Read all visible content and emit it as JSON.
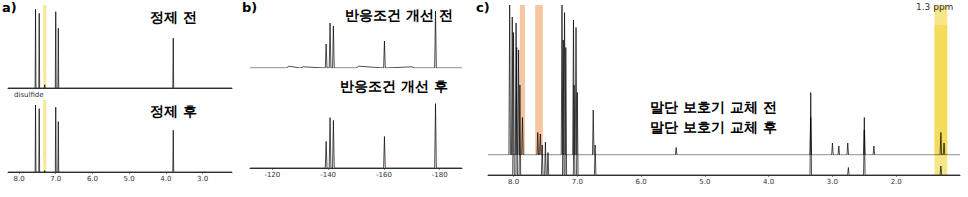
{
  "chart_data": [
    {
      "type": "line",
      "title": "a)",
      "tick_labels": "x",
      "grid": false,
      "xlim": [
        8.3,
        2.2
      ],
      "xticks": [
        {
          "value": 8,
          "label": "8.0"
        },
        {
          "value": 7,
          "label": "7.0"
        },
        {
          "value": 6,
          "label": "6.0"
        },
        {
          "value": 5,
          "label": "5.0"
        },
        {
          "value": 4,
          "label": "4.0"
        },
        {
          "value": 3,
          "label": "3.0"
        }
      ],
      "ylim": [
        0,
        100
      ],
      "annotations": [
        "disulfide"
      ],
      "highlights": [
        {
          "range": [
            7.34,
            7.26
          ],
          "color": "#f2dc3c",
          "series": [
            0,
            1
          ]
        }
      ],
      "series": [
        {
          "name": "정제 전",
          "color": "#000000",
          "x": [
            8.3,
            7.562,
            7.55,
            7.538,
            7.462,
            7.45,
            7.438,
            7.312,
            7.3,
            7.288,
            7.012,
            7.0,
            6.988,
            6.942,
            6.93,
            6.918,
            3.812,
            3.8,
            3.788,
            2.2
          ],
          "values": [
            0,
            0,
            95,
            0,
            0,
            90,
            0,
            0,
            4,
            0,
            0,
            92,
            0,
            0,
            72,
            0,
            0,
            60,
            0,
            0
          ]
        },
        {
          "name": "정제 후",
          "color": "#000000",
          "x": [
            8.3,
            7.562,
            7.55,
            7.538,
            7.462,
            7.45,
            7.438,
            7.312,
            7.3,
            7.288,
            7.012,
            7.0,
            6.988,
            6.942,
            6.93,
            6.918,
            3.812,
            3.8,
            3.788,
            2.2
          ],
          "values": [
            0,
            0,
            93,
            0,
            0,
            88,
            0,
            0,
            2,
            0,
            0,
            90,
            0,
            0,
            70,
            0,
            0,
            58,
            0,
            0
          ]
        }
      ]
    },
    {
      "type": "line",
      "title": "b)",
      "tick_labels": "x",
      "grid": false,
      "xlim": [
        -112,
        -188
      ],
      "xticks": [
        -120,
        -140,
        -160,
        -180
      ],
      "ylim": [
        0,
        100
      ],
      "series": [
        {
          "name": "반응조건 개선 전",
          "color": "#000000",
          "x": [
            -112,
            -125,
            -126,
            -130,
            -131,
            -139.0,
            -139.3,
            -139.6,
            -140.4,
            -140.7,
            -141.0,
            -141.6,
            -141.9,
            -142.2,
            -150,
            -151,
            -159.9,
            -160.2,
            -160.5,
            -170,
            -171,
            -178.2,
            -178.5,
            -178.8,
            -188
          ],
          "values": [
            0,
            0,
            3,
            0,
            2,
            0,
            40,
            0,
            0,
            75,
            0,
            0,
            70,
            0,
            0,
            3,
            0,
            45,
            0,
            2,
            0,
            0,
            95,
            0,
            0
          ]
        },
        {
          "name": "반응조건 개선 후",
          "color": "#000000",
          "x": [
            -112,
            -139.0,
            -139.3,
            -139.6,
            -140.4,
            -140.7,
            -141.0,
            -141.6,
            -141.9,
            -142.2,
            -159.9,
            -160.2,
            -160.5,
            -178.2,
            -178.5,
            -178.8,
            -188
          ],
          "values": [
            0,
            0,
            38,
            0,
            0,
            72,
            0,
            0,
            68,
            0,
            0,
            45,
            0,
            0,
            92,
            0,
            0
          ]
        }
      ]
    },
    {
      "type": "line",
      "title": "c)",
      "tick_labels": "x",
      "grid": false,
      "xlim": [
        8.4,
        1.0
      ],
      "xticks": [
        {
          "value": 8,
          "label": "8.0"
        },
        {
          "value": 7,
          "label": "7.0"
        },
        {
          "value": 6,
          "label": "6.0"
        },
        {
          "value": 5,
          "label": "5.0"
        },
        {
          "value": 4,
          "label": "4.0"
        },
        {
          "value": 3,
          "label": "3.0"
        },
        {
          "value": 2,
          "label": "2.0"
        }
      ],
      "ylim": [
        0,
        100
      ],
      "annotations": [
        "1.3 ppm"
      ],
      "highlights": [
        {
          "range": [
            7.9,
            7.82
          ],
          "color": "#f0a060",
          "series": [
            0
          ]
        },
        {
          "range": [
            7.66,
            7.54
          ],
          "color": "#f0a060",
          "series": [
            0
          ]
        },
        {
          "range": [
            1.4,
            1.2
          ],
          "color": "#f2d33a",
          "series": [
            0,
            1
          ]
        }
      ],
      "series": [
        {
          "name": "말단 보호기 교체 전",
          "color": "#000000",
          "x": [
            8.4,
            8.072,
            8.06,
            8.048,
            8.032,
            8.02,
            8.008,
            7.972,
            7.96,
            7.948,
            7.932,
            7.92,
            7.908,
            7.872,
            7.86,
            7.848,
            7.632,
            7.62,
            7.608,
            7.592,
            7.58,
            7.568,
            7.252,
            7.24,
            7.228,
            7.212,
            7.2,
            7.188,
            7.072,
            7.06,
            7.048,
            7.032,
            7.02,
            7.008,
            6.762,
            6.75,
            6.738,
            5.462,
            5.45,
            5.438,
            3.352,
            3.34,
            3.328,
            3.012,
            3.0,
            2.988,
            2.912,
            2.9,
            2.888,
            2.772,
            2.76,
            2.748,
            2.512,
            2.5,
            2.488,
            2.362,
            2.35,
            2.338,
            1.312,
            1.3,
            1.288,
            1.262,
            1.25,
            1.238,
            1.0
          ],
          "values": [
            0,
            0,
            100,
            0,
            0,
            92,
            0,
            0,
            88,
            0,
            0,
            70,
            0,
            0,
            25,
            0,
            0,
            15,
            0,
            0,
            14,
            0,
            0,
            100,
            0,
            0,
            95,
            0,
            0,
            90,
            0,
            0,
            85,
            0,
            0,
            30,
            0,
            0,
            5,
            0,
            0,
            25,
            0,
            0,
            8,
            0,
            0,
            6,
            0,
            0,
            8,
            0,
            0,
            25,
            0,
            0,
            6,
            0,
            0,
            15,
            0,
            0,
            8,
            0,
            0
          ]
        },
        {
          "name": "말단 보호기 교체 후",
          "color": "#000000",
          "x": [
            8.4,
            8.012,
            8.0,
            7.988,
            7.962,
            7.95,
            7.938,
            7.912,
            7.9,
            7.888,
            7.562,
            7.55,
            7.538,
            7.512,
            7.5,
            7.488,
            7.472,
            7.46,
            7.448,
            7.232,
            7.22,
            7.208,
            7.192,
            7.18,
            7.168,
            7.062,
            7.05,
            7.038,
            7.012,
            7.0,
            6.988,
            6.732,
            6.72,
            6.708,
            3.352,
            3.34,
            3.328,
            2.762,
            2.75,
            2.738,
            2.512,
            2.5,
            2.488,
            1.312,
            1.3,
            1.288,
            1.0
          ],
          "values": [
            0,
            0,
            95,
            0,
            0,
            85,
            0,
            0,
            60,
            0,
            0,
            20,
            0,
            0,
            22,
            0,
            0,
            15,
            0,
            0,
            90,
            0,
            0,
            85,
            0,
            0,
            60,
            0,
            0,
            55,
            0,
            0,
            20,
            0,
            0,
            55,
            0,
            0,
            5,
            0,
            0,
            30,
            0,
            0,
            6,
            0,
            0
          ]
        }
      ]
    }
  ]
}
